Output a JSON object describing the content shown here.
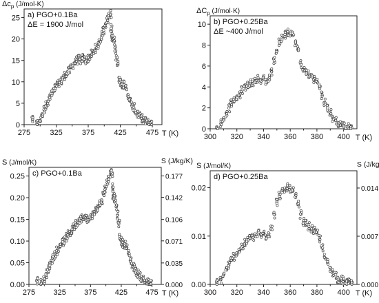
{
  "chart_data": [
    {
      "type": "scatter",
      "panel": "a",
      "annotation": [
        "a) PGO+0.1Ba",
        "ΔE = 1900 J/mol"
      ],
      "ylabel_parts": [
        "Δc",
        "p",
        " (J/mol·K)"
      ],
      "xlabel": "T  (K)",
      "xlim": [
        275,
        490
      ],
      "ylim": [
        0,
        27
      ],
      "xticks": [
        275,
        325,
        375,
        425,
        475
      ],
      "xminor": [
        300,
        350,
        400,
        450
      ],
      "yticks": [
        0,
        5,
        10,
        15,
        20,
        25
      ],
      "right_axis": null,
      "x": [
        288,
        295,
        300,
        303,
        306,
        309,
        312,
        315,
        318,
        321,
        324,
        327,
        330,
        333,
        336,
        339,
        342,
        345,
        348,
        351,
        354,
        357,
        360,
        363,
        366,
        369,
        372,
        375,
        378,
        381,
        384,
        387,
        390,
        393,
        396,
        399,
        402,
        405,
        408,
        410,
        411,
        412,
        413,
        415,
        417,
        419,
        421,
        423,
        425,
        428,
        431,
        434,
        437,
        440,
        443,
        446,
        449,
        452,
        455,
        458,
        461,
        464,
        467,
        470,
        473
      ],
      "y": [
        1.0,
        0.3,
        1.0,
        2.5,
        3.5,
        4.5,
        5.5,
        6.3,
        7.0,
        7.8,
        8.5,
        9.3,
        9.8,
        10.2,
        10.8,
        11.5,
        12.0,
        12.5,
        13.3,
        14.0,
        14.5,
        15.0,
        15.3,
        15.0,
        15.5,
        15.2,
        15.0,
        15.5,
        16.0,
        16.5,
        17.0,
        17.8,
        18.5,
        19.5,
        20.8,
        22.0,
        23.5,
        24.5,
        25.5,
        25.8,
        22.5,
        20.5,
        20.0,
        19.5,
        18.0,
        16.0,
        14.0,
        11.0,
        10.0,
        9.5,
        9.3,
        8.5,
        7.0,
        5.5,
        4.5,
        4.0,
        3.0,
        2.5,
        2.0,
        1.5,
        1.2,
        0.8,
        0.5,
        0.3,
        0.2
      ]
    },
    {
      "type": "scatter",
      "panel": "b",
      "annotation": [
        "b) PGO+0.25Ba",
        "ΔE ~400 J/mol"
      ],
      "ylabel_parts": [
        "ΔC",
        "p",
        " (J/mol·K)"
      ],
      "xlabel": "T  (K)",
      "xlim": [
        300,
        410
      ],
      "ylim": [
        0,
        10.8
      ],
      "xticks": [
        300,
        320,
        340,
        360,
        380,
        400
      ],
      "xminor": [
        310,
        330,
        350,
        370,
        390
      ],
      "yticks": [
        0,
        2,
        4,
        6,
        8,
        10
      ],
      "right_axis": null,
      "x": [
        305,
        308,
        310,
        312,
        314,
        316,
        318,
        320,
        322,
        324,
        326,
        328,
        330,
        332,
        334,
        336,
        338,
        340,
        342,
        344,
        346,
        348,
        350,
        352,
        354,
        356,
        358,
        360,
        362,
        364,
        366,
        368,
        370,
        372,
        374,
        376,
        378,
        380,
        382,
        384,
        386,
        388,
        390,
        392,
        394,
        396,
        398,
        400,
        402,
        404,
        406
      ],
      "y": [
        0.2,
        0.5,
        1.0,
        1.5,
        2.0,
        2.5,
        2.8,
        3.0,
        3.2,
        3.7,
        4.0,
        4.2,
        4.4,
        4.5,
        4.6,
        4.8,
        4.7,
        4.8,
        4.6,
        4.8,
        5.5,
        6.5,
        7.5,
        8.3,
        8.7,
        9.0,
        9.2,
        9.1,
        8.9,
        8.3,
        7.5,
        6.2,
        5.6,
        5.4,
        5.2,
        5.0,
        4.8,
        4.5,
        4.0,
        3.2,
        2.5,
        2.0,
        1.5,
        1.0,
        0.8,
        0.5,
        0.4,
        0.3,
        0.2,
        0.15,
        0.1
      ]
    },
    {
      "type": "scatter",
      "panel": "c",
      "annotation": [
        "c) PGO+0.1Ba"
      ],
      "ylabel_parts": [
        "S",
        "",
        " (J/mol/K)"
      ],
      "xlabel": "T  (K)",
      "xlim": [
        275,
        490
      ],
      "ylim": [
        0,
        0.27
      ],
      "xticks": [
        275,
        325,
        375,
        425,
        475
      ],
      "xminor": [
        300,
        350,
        400,
        450
      ],
      "yticks": [
        0.0,
        0.05,
        0.1,
        0.15,
        0.2,
        0.25
      ],
      "ytick_labels": [
        "0.00",
        "0.05",
        "0.10",
        "0.15",
        "0.20",
        "0.25"
      ],
      "right_axis": {
        "label": "S  (J/kg/K)",
        "ticks": [
          0.0,
          0.035,
          0.071,
          0.106,
          0.142,
          0.177
        ],
        "tick_labels": [
          "0.000",
          "0.035",
          "0.071",
          "0.106",
          "0.142",
          "0.177"
        ],
        "lim": [
          0,
          0.191
        ]
      },
      "x": [
        288,
        295,
        300,
        303,
        306,
        309,
        312,
        315,
        318,
        321,
        324,
        327,
        330,
        333,
        336,
        339,
        342,
        345,
        348,
        351,
        354,
        357,
        360,
        363,
        366,
        369,
        372,
        375,
        378,
        381,
        384,
        387,
        390,
        393,
        396,
        399,
        402,
        405,
        408,
        410,
        411,
        412,
        413,
        415,
        417,
        419,
        421,
        423,
        425,
        428,
        431,
        434,
        437,
        440,
        443,
        446,
        449,
        452,
        455,
        458,
        461,
        464,
        467,
        470,
        473
      ],
      "y": [
        0.01,
        0.003,
        0.01,
        0.025,
        0.035,
        0.045,
        0.055,
        0.063,
        0.07,
        0.078,
        0.085,
        0.093,
        0.098,
        0.102,
        0.108,
        0.115,
        0.12,
        0.125,
        0.133,
        0.14,
        0.145,
        0.15,
        0.153,
        0.15,
        0.155,
        0.152,
        0.15,
        0.155,
        0.16,
        0.165,
        0.17,
        0.178,
        0.185,
        0.195,
        0.208,
        0.22,
        0.235,
        0.245,
        0.255,
        0.258,
        0.225,
        0.205,
        0.2,
        0.195,
        0.18,
        0.16,
        0.14,
        0.11,
        0.1,
        0.095,
        0.093,
        0.085,
        0.07,
        0.055,
        0.045,
        0.04,
        0.03,
        0.025,
        0.02,
        0.015,
        0.012,
        0.008,
        0.005,
        0.003,
        0.002
      ]
    },
    {
      "type": "scatter",
      "panel": "d",
      "annotation": [
        "d) PGO+0.25Ba"
      ],
      "ylabel_parts": [
        "S",
        "",
        " (J/mol/K)"
      ],
      "xlabel": "T  (K)",
      "xlim": [
        300,
        410
      ],
      "ylim": [
        0,
        0.0235
      ],
      "xticks": [
        300,
        320,
        340,
        360,
        380,
        400
      ],
      "xminor": [
        310,
        330,
        350,
        370,
        390
      ],
      "yticks": [
        0.0,
        0.01,
        0.02
      ],
      "ytick_labels": [
        "0.00",
        "0.01",
        "0.02"
      ],
      "right_axis": {
        "label": "S  (J/kg/K)",
        "ticks": [
          0.0,
          0.007,
          0.014
        ],
        "tick_labels": [
          "0.000",
          "0.007",
          "0.014"
        ],
        "lim": [
          0,
          0.0165
        ]
      },
      "x": [
        305,
        308,
        310,
        312,
        314,
        316,
        318,
        320,
        322,
        324,
        326,
        328,
        330,
        332,
        334,
        336,
        338,
        340,
        342,
        344,
        346,
        348,
        350,
        352,
        354,
        356,
        358,
        360,
        362,
        364,
        366,
        368,
        370,
        372,
        374,
        376,
        378,
        380,
        382,
        384,
        386,
        388,
        390,
        392,
        394,
        396,
        398,
        400,
        402,
        404,
        406
      ],
      "y": [
        0.0003,
        0.001,
        0.002,
        0.003,
        0.004,
        0.005,
        0.0058,
        0.0065,
        0.007,
        0.0078,
        0.0085,
        0.009,
        0.0095,
        0.0098,
        0.01,
        0.0105,
        0.0102,
        0.0104,
        0.01,
        0.0105,
        0.012,
        0.0145,
        0.017,
        0.0185,
        0.019,
        0.0195,
        0.02,
        0.0198,
        0.0193,
        0.018,
        0.0165,
        0.0145,
        0.013,
        0.0125,
        0.012,
        0.0115,
        0.011,
        0.0105,
        0.0095,
        0.0075,
        0.0055,
        0.0045,
        0.0035,
        0.0025,
        0.002,
        0.0012,
        0.001,
        0.0008,
        0.0005,
        0.0004,
        0.0003
      ]
    }
  ]
}
